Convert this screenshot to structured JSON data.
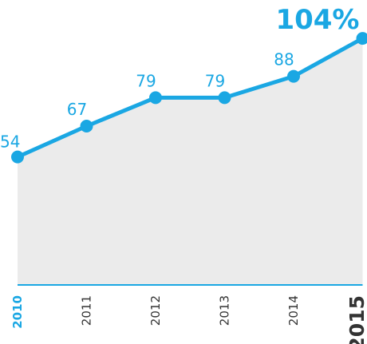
{
  "chart_data": {
    "type": "area",
    "categories": [
      "2010",
      "2011",
      "2012",
      "2013",
      "2014",
      "2015"
    ],
    "values": [
      54,
      67,
      79,
      79,
      88,
      104
    ],
    "value_labels": [
      "54",
      "67",
      "79",
      "79",
      "88",
      "104%"
    ],
    "title": "",
    "xlabel": "",
    "ylabel": "",
    "ylim": [
      0,
      110
    ],
    "grid": false,
    "legend": "none",
    "colors": {
      "line": "#1aa7e3",
      "fill": "#ebebeb",
      "axis": "#1aa7e3",
      "label": "#1aa7e3",
      "tick": "#333333",
      "tick_first": "#1aa7e3",
      "tick_last": "#333333"
    }
  }
}
